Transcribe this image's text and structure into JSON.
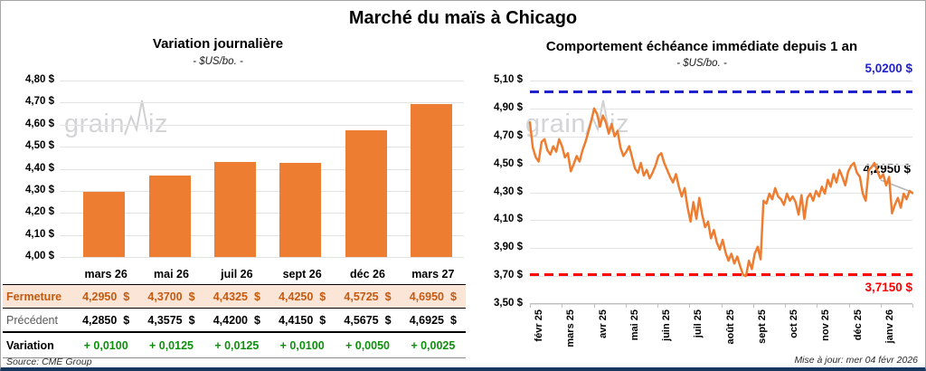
{
  "header": {
    "title": "Marché du maïs à Chicago"
  },
  "watermark": {
    "left_text": "grain",
    "right_text": "iz"
  },
  "footer": {
    "source": "Source: CME Group",
    "updated": "Mise à jour: mer 04 févr 2026"
  },
  "table": {
    "columns": [
      "mars 26",
      "mai 26",
      "juil 26",
      "sept 26",
      "déc 26",
      "mars 27"
    ],
    "rows": [
      {
        "label": "Fermeture",
        "values": [
          "4,2950",
          "4,3700",
          "4,4325",
          "4,4250",
          "4,5725",
          "4,6950"
        ],
        "suffix": "$"
      },
      {
        "label": "Précédent",
        "values": [
          "4,2850",
          "4,3575",
          "4,4200",
          "4,4150",
          "4,5675",
          "4,6925"
        ],
        "suffix": "$"
      },
      {
        "label": "Variation",
        "values": [
          "+ 0,0100",
          "+ 0,0125",
          "+ 0,0125",
          "+ 0,0100",
          "+ 0,0050",
          "+ 0,0025"
        ],
        "suffix": ""
      }
    ]
  },
  "chart_data": [
    {
      "type": "bar",
      "title": "Variation journalière",
      "subtitle": "- $US/bo. -",
      "categories": [
        "mars 26",
        "mai 26",
        "juil 26",
        "sept 26",
        "déc 26",
        "mars 27"
      ],
      "values": [
        4.295,
        4.37,
        4.4325,
        4.425,
        4.5725,
        4.695
      ],
      "ylim": [
        4.0,
        4.8
      ],
      "y_tick_labels": [
        "4,80 $",
        "4,70 $",
        "4,60 $",
        "4,50 $",
        "4,40 $",
        "4,30 $",
        "4,20 $",
        "4,10 $",
        "4,00 $"
      ],
      "bar_color": "#ED7D31",
      "grid": true
    },
    {
      "type": "line",
      "title": "Comportement échéance immédiate depuis 1 an",
      "subtitle": "- $US/bo. -",
      "x_tick_labels": [
        "févr 25",
        "mars 25",
        "avr 25",
        "mai 25",
        "juin 25",
        "juil 25",
        "août 25",
        "sept 25",
        "oct 25",
        "nov 25",
        "déc 25",
        "janv 26"
      ],
      "ylim": [
        3.5,
        5.1
      ],
      "y_tick_labels": [
        "5,10 $",
        "4,90 $",
        "4,70 $",
        "4,50 $",
        "4,30 $",
        "4,10 $",
        "3,90 $",
        "3,70 $",
        "3,50 $"
      ],
      "line_color": "#ED7D31",
      "reference_lines": [
        {
          "value": 5.02,
          "label": "5,0200 $",
          "color": "#2121CE",
          "style": "dashed",
          "position": "above"
        },
        {
          "value": 3.715,
          "label": "3,7150 $",
          "color": "#FF0000",
          "style": "dashed",
          "position": "below"
        }
      ],
      "last_value": 4.295,
      "last_value_label": "4,2950 $",
      "values": [
        4.8,
        4.62,
        4.55,
        4.52,
        4.66,
        4.68,
        4.6,
        4.57,
        4.63,
        4.59,
        4.68,
        4.63,
        4.55,
        4.58,
        4.45,
        4.5,
        4.56,
        4.52,
        4.6,
        4.66,
        4.73,
        4.81,
        4.9,
        4.86,
        4.77,
        4.85,
        4.8,
        4.72,
        4.79,
        4.7,
        4.74,
        4.62,
        4.56,
        4.59,
        4.63,
        4.55,
        4.47,
        4.44,
        4.51,
        4.42,
        4.46,
        4.4,
        4.44,
        4.49,
        4.56,
        4.58,
        4.51,
        4.46,
        4.41,
        4.37,
        4.43,
        4.34,
        4.27,
        4.33,
        4.19,
        4.09,
        4.23,
        4.11,
        4.26,
        4.14,
        4.05,
        4.09,
        3.97,
        4.03,
        3.94,
        3.89,
        3.96,
        3.87,
        3.81,
        3.86,
        3.79,
        3.84,
        3.77,
        3.71,
        3.7,
        3.81,
        3.75,
        3.86,
        3.91,
        3.82,
        4.24,
        4.22,
        4.29,
        4.25,
        4.33,
        4.27,
        4.25,
        4.21,
        4.29,
        4.24,
        4.27,
        4.23,
        4.14,
        4.28,
        4.11,
        4.26,
        4.29,
        4.24,
        4.31,
        4.27,
        4.34,
        4.29,
        4.39,
        4.34,
        4.43,
        4.37,
        4.46,
        4.41,
        4.35,
        4.45,
        4.49,
        4.51,
        4.44,
        4.41,
        4.29,
        4.24,
        4.46,
        4.48,
        4.51,
        4.45,
        4.4,
        4.43,
        4.35,
        4.41,
        4.15,
        4.21,
        4.26,
        4.19,
        4.29,
        4.25,
        4.31,
        4.295
      ]
    }
  ]
}
